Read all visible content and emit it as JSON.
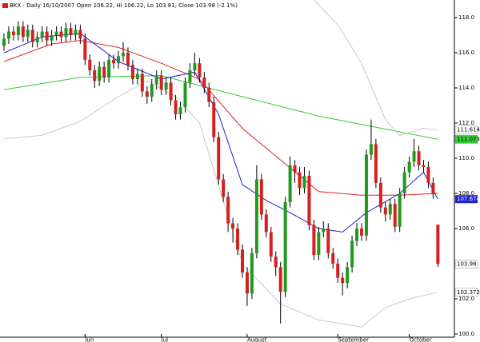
{
  "chart_data": {
    "type": "candlestick",
    "title": "BKX - Daily 16/10/2007 Open 106.22, Hi 106.22, Lo 103.81, Close 103.98 (-2.1%)",
    "categories": [
      null,
      null,
      null,
      null,
      null,
      null,
      null,
      null,
      null,
      null,
      null,
      null,
      null,
      null,
      null,
      null,
      null,
      "Jun",
      null,
      null,
      null,
      null,
      null,
      null,
      null,
      null,
      null,
      null,
      null,
      null,
      null,
      null,
      null,
      "Jul",
      null,
      null,
      null,
      null,
      null,
      null,
      null,
      null,
      null,
      null,
      null,
      null,
      null,
      null,
      null,
      null,
      null,
      "August",
      null,
      null,
      null,
      null,
      null,
      null,
      null,
      null,
      null,
      null,
      null,
      null,
      null,
      null,
      null,
      null,
      null,
      null,
      "September",
      null,
      null,
      null,
      null,
      null,
      null,
      null,
      null,
      null,
      null,
      null,
      null,
      null,
      null,
      "October",
      null,
      null,
      null,
      null,
      null,
      null
    ],
    "open": [
      116.4,
      116.8,
      117.2,
      117.0,
      117.5,
      116.9,
      117.3,
      116.6,
      116.9,
      117.2,
      116.7,
      117.0,
      117.2,
      116.9,
      117.4,
      117.0,
      117.3,
      116.8,
      115.6,
      115.0,
      114.4,
      115.2,
      114.6,
      115.6,
      115.4,
      115.8,
      116.0,
      115.3,
      114.5,
      114.8,
      113.8,
      113.5,
      114.2,
      114.7,
      113.9,
      114.3,
      113.3,
      112.5,
      112.9,
      114.3,
      115.0,
      115.4,
      114.6,
      114.0,
      113.2,
      111.2,
      108.8,
      107.8,
      106.3,
      106.0,
      104.8,
      103.5,
      102.3,
      104.6,
      108.8,
      106.8,
      105.8,
      104.4,
      103.8,
      102.4,
      107.5,
      109.6,
      109.2,
      108.3,
      109.0,
      106.2,
      104.5,
      105.8,
      106.0,
      104.6,
      104.0,
      103.2,
      102.9,
      103.8,
      105.3,
      106.0,
      105.6,
      110.2,
      110.8,
      108.6,
      107.2,
      106.8,
      107.4,
      106.1,
      108.0,
      109.2,
      109.8,
      110.4,
      109.6,
      109.5,
      108.6,
      106.22
    ],
    "high": [
      117.1,
      117.5,
      117.5,
      117.8,
      117.8,
      117.6,
      117.6,
      117.2,
      117.5,
      117.5,
      117.3,
      117.5,
      117.5,
      117.7,
      117.7,
      117.6,
      117.6,
      117.1,
      115.9,
      115.3,
      115.5,
      115.5,
      115.9,
      115.9,
      116.1,
      116.6,
      116.3,
      115.6,
      115.1,
      115.1,
      114.1,
      114.5,
      115.0,
      115.0,
      114.6,
      114.6,
      113.6,
      113.2,
      114.6,
      115.4,
      116.0,
      115.7,
      114.9,
      114.3,
      113.5,
      111.5,
      109.1,
      108.1,
      106.6,
      106.3,
      105.1,
      103.8,
      104.9,
      109.6,
      109.1,
      107.1,
      106.1,
      104.7,
      104.1,
      107.8,
      110.1,
      109.9,
      109.5,
      109.5,
      109.3,
      106.5,
      106.1,
      106.4,
      106.3,
      104.9,
      104.3,
      103.5,
      104.1,
      105.6,
      106.3,
      106.3,
      110.5,
      112.2,
      111.1,
      108.9,
      107.5,
      107.7,
      107.7,
      108.3,
      109.5,
      110.1,
      111.1,
      110.7,
      109.9,
      109.8,
      108.9,
      106.22
    ],
    "low": [
      116.1,
      116.5,
      116.7,
      116.7,
      116.6,
      116.6,
      116.3,
      116.3,
      116.6,
      116.4,
      116.4,
      116.7,
      116.6,
      116.6,
      116.7,
      116.7,
      116.5,
      115.3,
      114.7,
      114.0,
      114.1,
      114.3,
      114.3,
      115.1,
      115.1,
      115.5,
      115.0,
      114.2,
      114.2,
      113.5,
      113.1,
      113.2,
      113.9,
      113.6,
      113.6,
      113.0,
      112.2,
      112.2,
      112.6,
      114.0,
      114.7,
      114.3,
      113.7,
      112.9,
      110.9,
      108.5,
      107.5,
      105.8,
      105.2,
      104.5,
      103.2,
      101.6,
      102.0,
      104.3,
      106.5,
      105.5,
      104.1,
      103.3,
      100.6,
      102.1,
      107.2,
      108.6,
      107.9,
      108.0,
      105.9,
      104.2,
      104.2,
      105.5,
      104.3,
      103.7,
      102.9,
      102.2,
      102.6,
      103.5,
      105.0,
      105.3,
      105.3,
      109.9,
      108.3,
      106.9,
      106.4,
      106.5,
      105.8,
      105.8,
      107.7,
      108.9,
      109.5,
      109.3,
      109.2,
      108.3,
      107.7,
      103.81
    ],
    "close": [
      116.8,
      117.2,
      117.0,
      117.5,
      116.9,
      117.3,
      116.6,
      116.9,
      117.2,
      116.7,
      117.0,
      117.2,
      116.9,
      117.4,
      117.0,
      117.3,
      116.8,
      115.6,
      115.0,
      114.4,
      115.2,
      114.6,
      115.6,
      115.4,
      115.8,
      116.0,
      115.3,
      114.5,
      114.8,
      113.8,
      113.5,
      114.2,
      114.7,
      113.9,
      114.3,
      113.3,
      112.5,
      112.9,
      114.3,
      115.0,
      115.4,
      114.6,
      114.0,
      113.2,
      111.2,
      108.8,
      107.8,
      106.3,
      106.0,
      104.8,
      103.5,
      102.3,
      104.6,
      108.8,
      106.8,
      105.8,
      104.4,
      103.8,
      102.4,
      107.5,
      109.6,
      109.2,
      108.3,
      109.0,
      106.2,
      104.5,
      105.8,
      106.0,
      104.6,
      104.0,
      103.2,
      102.9,
      103.8,
      105.3,
      106.0,
      105.6,
      110.2,
      110.8,
      108.6,
      107.2,
      106.8,
      107.4,
      106.1,
      108.0,
      109.2,
      109.8,
      110.4,
      109.6,
      109.5,
      108.6,
      108.0,
      103.98
    ],
    "up_color": "#1f9a1f",
    "down_color": "#d42020",
    "lines": [
      {
        "color": "#33cc33",
        "x": [
          0,
          16,
          33,
          50,
          66,
          83,
          91
        ],
        "values": [
          113.9,
          114.6,
          114.7,
          113.5,
          112.4,
          111.5,
          111.073
        ]
      },
      {
        "color": "#e02020",
        "x": [
          0,
          10,
          16,
          24,
          33,
          41,
          50,
          58,
          66,
          75,
          83,
          91
        ],
        "values": [
          115.5,
          116.5,
          116.7,
          116.3,
          115.4,
          114.5,
          111.7,
          109.9,
          108.1,
          107.9,
          107.9,
          108.0
        ]
      },
      {
        "color": "#1f1fd0",
        "x": [
          0,
          8,
          16,
          24,
          33,
          40,
          45,
          50,
          55,
          60,
          66,
          71,
          76,
          83,
          88,
          91
        ],
        "values": [
          116.0,
          116.9,
          117.1,
          115.5,
          114.5,
          114.9,
          112.5,
          108.5,
          107.6,
          106.9,
          106.0,
          105.8,
          106.9,
          108.0,
          109.2,
          107.674
        ]
      },
      {
        "color": "#c8c8c8",
        "x": [
          65,
          70,
          75,
          80,
          83,
          88,
          91
        ],
        "values": [
          119.0,
          117.6,
          115.4,
          112.2,
          111.3,
          111.7,
          111.614
        ]
      },
      {
        "color": "#c8c8c8",
        "x": [
          0,
          8,
          16,
          24,
          30,
          36,
          41,
          50,
          58,
          66,
          75,
          80,
          85,
          91
        ],
        "values": [
          111.1,
          111.3,
          112.1,
          113.5,
          114.4,
          113.5,
          112.0,
          104.0,
          101.7,
          100.8,
          100.4,
          101.5,
          102.0,
          102.372
        ]
      }
    ],
    "price_tags": [
      {
        "value": 111.614,
        "color": "#ffffff",
        "text_color": "#000000"
      },
      {
        "value": 111.073,
        "color": "#33cc33",
        "text_color": "#000000"
      },
      {
        "value": 107.674,
        "color": "#1f1fd0",
        "text_color": "#ffffff"
      },
      {
        "value": 103.98,
        "color": "#ffffff",
        "text_color": "#000000"
      },
      {
        "value": 102.372,
        "color": "#ffffff",
        "text_color": "#000000"
      }
    ],
    "ylim": [
      99.8,
      119
    ],
    "yticks": [
      {
        "value": 100,
        "label": "100.0"
      },
      {
        "value": 102,
        "label": "102.0"
      },
      {
        "value": 104,
        "label": "104.0"
      },
      {
        "value": 106,
        "label": "106.0"
      },
      {
        "value": 108,
        "label": "108.0"
      },
      {
        "value": 110,
        "label": "110.0"
      },
      {
        "value": 112,
        "label": "112.0"
      },
      {
        "value": 114,
        "label": "114.0"
      },
      {
        "value": 116,
        "label": "116.0"
      },
      {
        "value": 118,
        "label": "118.0"
      }
    ],
    "grid": false
  }
}
